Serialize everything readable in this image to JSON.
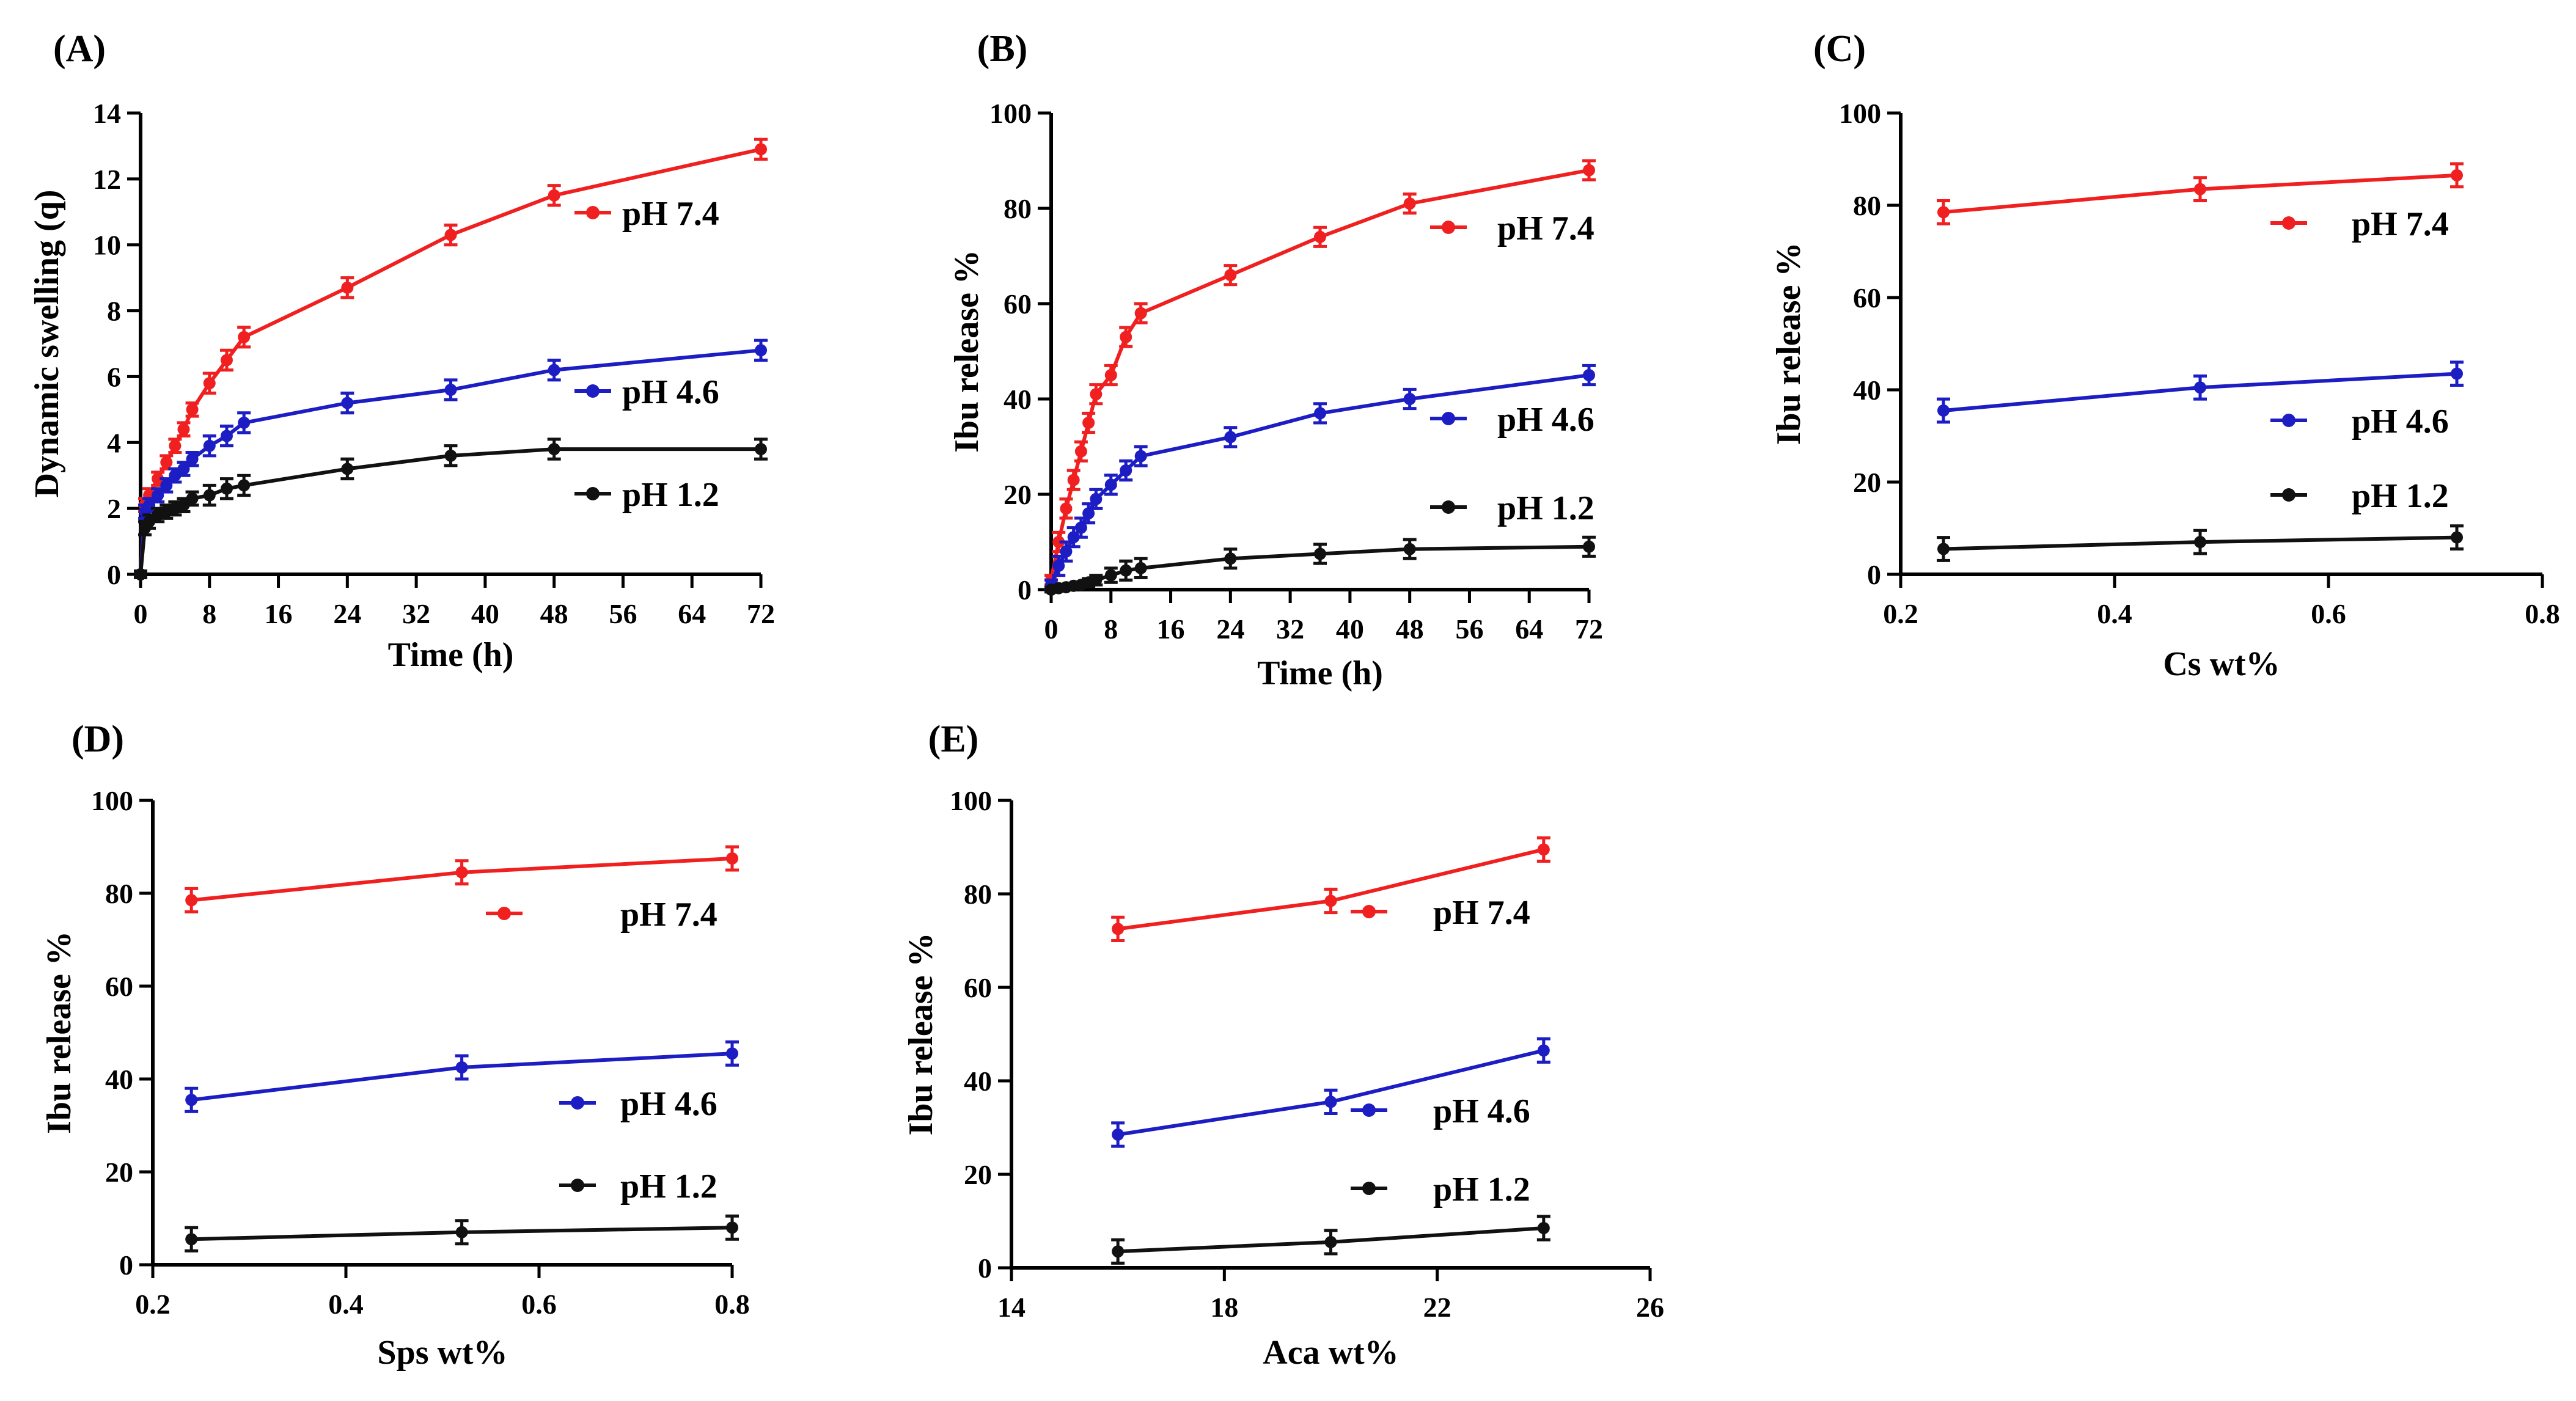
{
  "colors": {
    "pH 7.4": "#f02020",
    "pH 4.6": "#1d1dc4",
    "pH 1.2": "#111111"
  },
  "chart_data": [
    {
      "panel": "(A)",
      "type": "line",
      "xlabel": "Time (h)",
      "ylabel": "Dynamic swelling (q)",
      "xlim": [
        0,
        72
      ],
      "ylim": [
        0,
        14
      ],
      "xticks": [
        0,
        8,
        16,
        24,
        32,
        40,
        48,
        56,
        64,
        72
      ],
      "yticks": [
        0,
        2,
        4,
        6,
        8,
        10,
        12,
        14
      ],
      "series": [
        {
          "name": "pH 7.4",
          "x": [
            0,
            0.5,
            1,
            2,
            3,
            4,
            5,
            6,
            8,
            10,
            12,
            24,
            36,
            48,
            72
          ],
          "y": [
            0,
            2.1,
            2.4,
            2.9,
            3.4,
            3.9,
            4.4,
            5.0,
            5.8,
            6.5,
            7.2,
            8.7,
            10.3,
            11.5,
            12.9
          ],
          "err": [
            0.1,
            0.2,
            0.2,
            0.2,
            0.2,
            0.2,
            0.2,
            0.2,
            0.3,
            0.3,
            0.3,
            0.3,
            0.3,
            0.3,
            0.3
          ]
        },
        {
          "name": "pH 4.6",
          "x": [
            0,
            0.5,
            1,
            2,
            3,
            4,
            5,
            6,
            8,
            10,
            12,
            24,
            36,
            48,
            72
          ],
          "y": [
            0,
            1.9,
            2.1,
            2.4,
            2.7,
            3.0,
            3.2,
            3.5,
            3.9,
            4.2,
            4.6,
            5.2,
            5.6,
            6.2,
            6.8
          ],
          "err": [
            0.1,
            0.2,
            0.2,
            0.2,
            0.2,
            0.2,
            0.2,
            0.2,
            0.3,
            0.3,
            0.3,
            0.3,
            0.3,
            0.3,
            0.3
          ]
        },
        {
          "name": "pH 1.2",
          "x": [
            0,
            0.5,
            1,
            2,
            3,
            4,
            5,
            6,
            8,
            10,
            12,
            24,
            36,
            48,
            72
          ],
          "y": [
            0,
            1.4,
            1.6,
            1.8,
            1.9,
            2.0,
            2.1,
            2.3,
            2.4,
            2.6,
            2.7,
            3.2,
            3.6,
            3.8,
            3.8
          ],
          "err": [
            0.1,
            0.2,
            0.2,
            0.2,
            0.2,
            0.2,
            0.2,
            0.2,
            0.3,
            0.3,
            0.3,
            0.3,
            0.3,
            0.3,
            0.3
          ]
        }
      ],
      "legend": [
        "pH 7.4",
        "pH 4.6",
        "pH 1.2"
      ]
    },
    {
      "panel": "(B)",
      "type": "line",
      "xlabel": "Time (h)",
      "ylabel": "Ibu release %",
      "xlim": [
        0,
        72
      ],
      "ylim": [
        0,
        100
      ],
      "xticks": [
        0,
        8,
        16,
        24,
        32,
        40,
        48,
        56,
        64,
        72
      ],
      "yticks": [
        0,
        20,
        40,
        60,
        80,
        100
      ],
      "series": [
        {
          "name": "pH 7.4",
          "x": [
            0,
            1,
            2,
            3,
            4,
            5,
            6,
            8,
            10,
            12,
            24,
            36,
            48,
            72
          ],
          "y": [
            2,
            10,
            17,
            23,
            29,
            35,
            41,
            45,
            53,
            58,
            66,
            74,
            81,
            88
          ],
          "err": [
            1,
            2,
            2,
            2,
            2,
            2,
            2,
            2,
            2,
            2,
            2,
            2,
            2,
            2
          ]
        },
        {
          "name": "pH 4.6",
          "x": [
            0,
            1,
            2,
            3,
            4,
            5,
            6,
            8,
            10,
            12,
            24,
            36,
            48,
            72
          ],
          "y": [
            1,
            5,
            8,
            11,
            13,
            16,
            19,
            22,
            25,
            28,
            32,
            37,
            40,
            45
          ],
          "err": [
            1,
            2,
            2,
            2,
            2,
            2,
            2,
            2,
            2,
            2,
            2,
            2,
            2,
            2
          ]
        },
        {
          "name": "pH 1.2",
          "x": [
            0,
            1,
            2,
            3,
            4,
            5,
            6,
            8,
            10,
            12,
            24,
            36,
            48,
            72
          ],
          "y": [
            0,
            0.3,
            0.5,
            0.8,
            1,
            1.5,
            2,
            3,
            4,
            4.5,
            6.5,
            7.5,
            8.5,
            9
          ],
          "err": [
            0.5,
            0.5,
            0.5,
            0.5,
            0.5,
            0.8,
            1,
            1.5,
            2,
            2,
            2,
            2,
            2,
            2
          ]
        }
      ],
      "legend": [
        "pH 7.4",
        "pH 4.6",
        "pH 1.2"
      ]
    },
    {
      "panel": "(C)",
      "type": "line",
      "xlabel": "Cs wt%",
      "ylabel": "Ibu release %",
      "xlim": [
        0.2,
        0.8
      ],
      "ylim": [
        0,
        100
      ],
      "xticks": [
        0.2,
        0.4,
        0.6,
        0.8
      ],
      "yticks": [
        0,
        20,
        40,
        60,
        80,
        100
      ],
      "series": [
        {
          "name": "pH 7.4",
          "x": [
            0.24,
            0.48,
            0.72
          ],
          "y": [
            78.5,
            83.5,
            86.5
          ],
          "err": [
            2.5,
            2.5,
            2.5
          ]
        },
        {
          "name": "pH 4.6",
          "x": [
            0.24,
            0.48,
            0.72
          ],
          "y": [
            35.5,
            40.5,
            43.5
          ],
          "err": [
            2.5,
            2.5,
            2.5
          ]
        },
        {
          "name": "pH 1.2",
          "x": [
            0.24,
            0.48,
            0.72
          ],
          "y": [
            5.5,
            7,
            8
          ],
          "err": [
            2.5,
            2.5,
            2.5
          ]
        }
      ],
      "legend": [
        "pH 7.4",
        "pH 4.6",
        "pH 1.2"
      ]
    },
    {
      "panel": "(D)",
      "type": "line",
      "xlabel": "Sps wt%",
      "ylabel": "Ibu release %",
      "xlim": [
        0.2,
        0.8
      ],
      "ylim": [
        0,
        100
      ],
      "xticks": [
        0.2,
        0.4,
        0.6,
        0.8
      ],
      "yticks": [
        0,
        20,
        40,
        60,
        80,
        100
      ],
      "series": [
        {
          "name": "pH 7.4",
          "x": [
            0.24,
            0.52,
            0.8
          ],
          "y": [
            78.5,
            84.5,
            87.5
          ],
          "err": [
            2.5,
            2.5,
            2.5
          ]
        },
        {
          "name": "pH 4.6",
          "x": [
            0.24,
            0.52,
            0.8
          ],
          "y": [
            35.5,
            42.5,
            45.5
          ],
          "err": [
            2.5,
            2.5,
            2.5
          ]
        },
        {
          "name": "pH 1.2",
          "x": [
            0.24,
            0.52,
            0.8
          ],
          "y": [
            5.5,
            7,
            8
          ],
          "err": [
            2.5,
            2.5,
            2.5
          ]
        }
      ],
      "legend": [
        "pH 7.4",
        "pH 4.6",
        "pH 1.2"
      ]
    },
    {
      "panel": "(E)",
      "type": "line",
      "xlabel": "Aca wt%",
      "ylabel": "Ibu release %",
      "xlim": [
        14,
        26
      ],
      "ylim": [
        0,
        100
      ],
      "xticks": [
        14,
        18,
        22,
        26
      ],
      "yticks": [
        0,
        20,
        40,
        60,
        80,
        100
      ],
      "series": [
        {
          "name": "pH 7.4",
          "x": [
            16,
            20,
            24
          ],
          "y": [
            72.5,
            78.5,
            89.5
          ],
          "err": [
            2.5,
            2.5,
            2.5
          ]
        },
        {
          "name": "pH 4.6",
          "x": [
            16,
            20,
            24
          ],
          "y": [
            28.5,
            35.5,
            46.5
          ],
          "err": [
            2.5,
            2.5,
            2.5
          ]
        },
        {
          "name": "pH 1.2",
          "x": [
            16,
            20,
            24
          ],
          "y": [
            3.5,
            5.5,
            8.5
          ],
          "err": [
            2.5,
            2.5,
            2.5
          ]
        }
      ],
      "legend": [
        "pH 7.4",
        "pH 4.6",
        "pH 1.2"
      ]
    }
  ]
}
